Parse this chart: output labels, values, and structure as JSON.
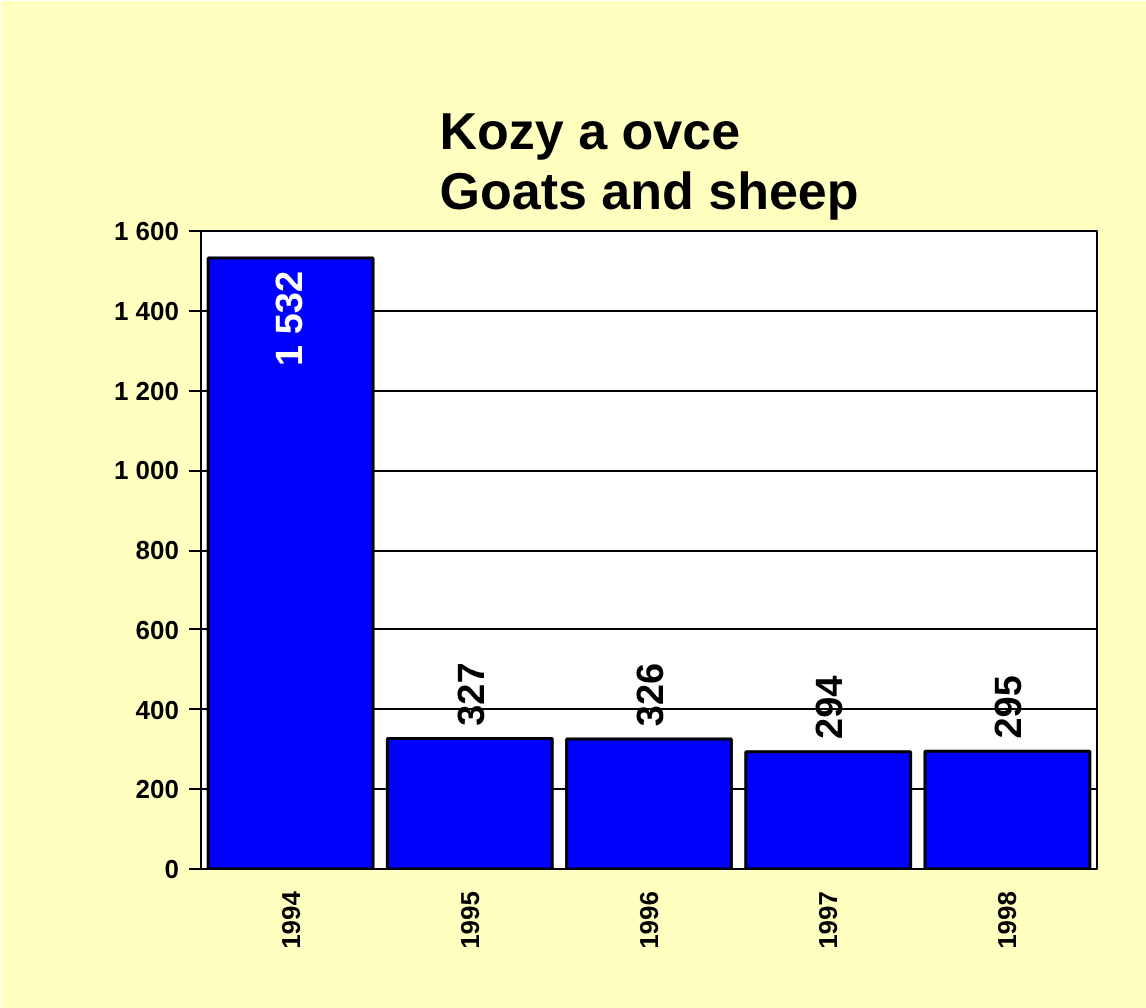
{
  "chart_data": {
    "type": "bar",
    "title": "Kozy a ovce\nGoats and sheep",
    "categories": [
      "1994",
      "1995",
      "1996",
      "1997",
      "1998"
    ],
    "values": [
      1532,
      327,
      326,
      294,
      295
    ],
    "color": "#0000ff",
    "value_labels": [
      "1 532",
      "327",
      "326",
      "294",
      "295"
    ],
    "ylim": [
      0,
      1600
    ],
    "yticks": [
      0,
      200,
      400,
      600,
      800,
      {
        "value": 1000,
        "label": "1 000"
      },
      {
        "value": 1200,
        "label": "1 200"
      },
      {
        "value": 1400,
        "label": "1 400"
      },
      {
        "value": 1600,
        "label": "1 600"
      }
    ],
    "grid": "y"
  }
}
